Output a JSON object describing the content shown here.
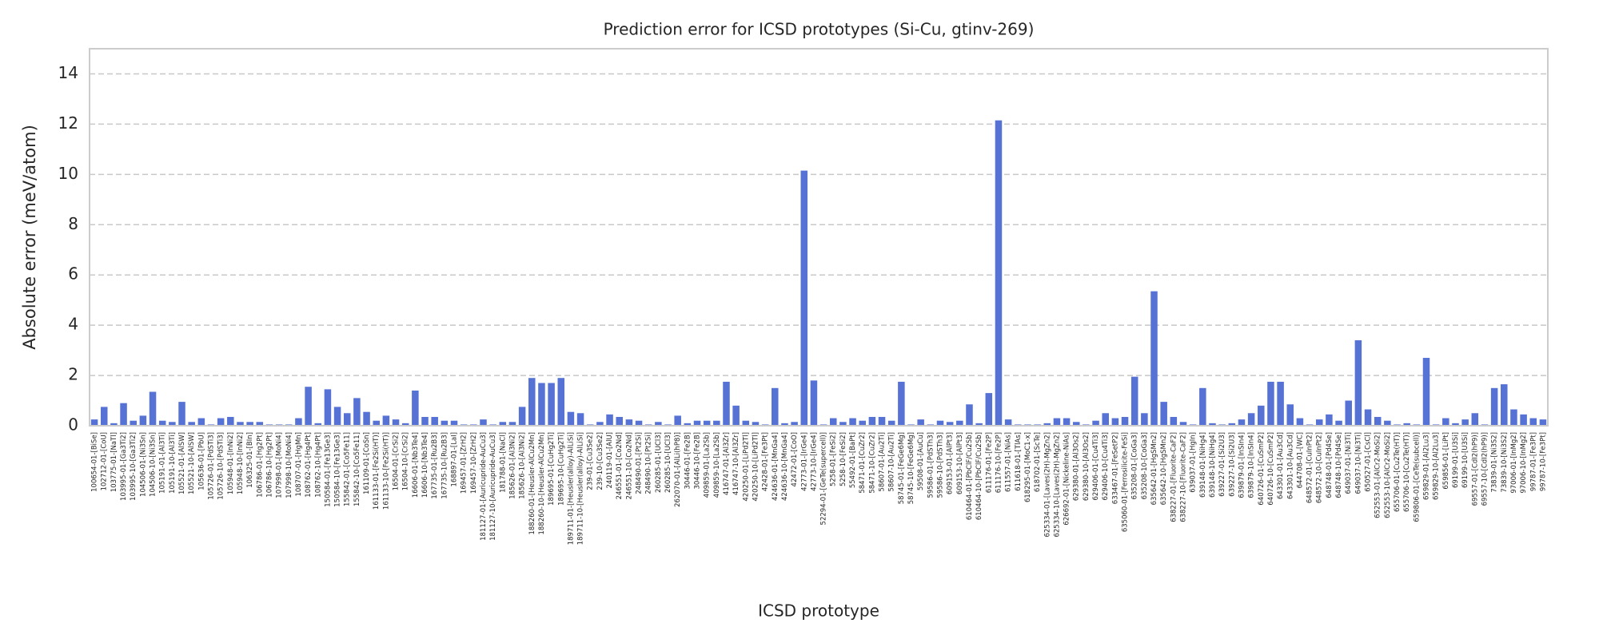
{
  "chart_data": {
    "type": "bar",
    "title": "Prediction error for ICSD prototypes (Si-Cu, gtinv-269)",
    "x_label": "ICSD prototype",
    "y_label": "Absolute error (meV/atom)",
    "color": "#5572d4",
    "grid": true,
    "ylim": [
      0,
      15
    ],
    "yticks": [
      0,
      2,
      4,
      6,
      8,
      10,
      12,
      14
    ],
    "categories": [
      "100654-01-[BiSe]",
      "102712-01-[CoU]",
      "103775-01-[NaTl]",
      "103995-01-[Ga3Ti2]",
      "103995-10-[Ga3Ti2]",
      "104506-01-[Ni3Sn]",
      "104506-10-[Ni3Sn]",
      "105191-01-[Al3Ti]",
      "105191-10-[Al3Ti]",
      "105521-01-[AlSW]",
      "105521-10-[AlSW]",
      "105636-01-[PbU]",
      "105726-01-[PdSTi3]",
      "105726-10-[PdSTi3]",
      "105948-01-[InNi2]",
      "105948-10-[InNi2]",
      "106325-01-[BIn]",
      "106786-01-[Hg2Pt]",
      "106786-10-[Hg2Pt]",
      "107998-01-[MoNi4]",
      "107998-10-[MoNi4]",
      "108707-01-[HgMn]",
      "108762-01-[Hg4Pt]",
      "108762-10-[Hg4Pt]",
      "150584-01-[Fe13Ge3]",
      "150584-10-[Fe13Ge3]",
      "155842-01-[Co5Fe11]",
      "155842-10-[Co5Fe11]",
      "161109-01-[CoSn]",
      "161133-01-[Fe2Si(HT)]",
      "161133-10-[Fe2Si(HT)]",
      "16504-01-[CrSi2]",
      "16504-10-[CrSi2]",
      "16606-01-[Nb3Te4]",
      "16606-10-[Nb3Te4]",
      "167735-01-[Ru2B3]",
      "167735-10-[Ru2B3]",
      "168897-01-[LaI]",
      "169457-01-[ZrH2]",
      "169457-10-[ZrH2]",
      "181127-01-[Auricupride-AuCu3]",
      "181127-10-[Auricupride-AuCu3]",
      "181788-01-[NaCl]",
      "185626-01-[Al3Ni2]",
      "185626-10-[Al3Ni2]",
      "188260-01-[Heusler-AlCu2Mn]",
      "188260-10-[Heusler-AlCu2Mn]",
      "189695-01-[CuHg2Ti]",
      "189695-10-[CuHg2Ti]",
      "189711-01-[Heusler(alloy)-AlLiSi]",
      "189711-10-[Heusler(alloy)-AlLiSi]",
      "239-01-[Cu3Se2]",
      "239-10-[Cu3Se2]",
      "240119-01-[AlU]",
      "246551-01-[Co2Nd]",
      "246551-10-[Co2Nd]",
      "248490-01-[Pt2Si]",
      "248490-10-[Pt2Si]",
      "260285-01-[UCl3]",
      "260285-10-[UCl3]",
      "262070-01-[AlLi(hP8)]",
      "30446-01-[Fe2B]",
      "30446-10-[Fe2B]",
      "409859-01-[La2Sb]",
      "409859-10-[La2Sb]",
      "416747-01-[Al3Zr]",
      "416747-10-[Al3Zr]",
      "420250-01-[LiPd2Tl]",
      "420250-10-[LiPd2Tl]",
      "42428-01-[Fe3Pt]",
      "424636-01-[MnGa4]",
      "424636-10-[MnGa4]",
      "42472-01-[CoO]",
      "42773-01-[IrGe4]",
      "42773-10-[IrGe4]",
      "52294-01-[GeTe(supercell)]",
      "5258-01-[FeSi2]",
      "5258-10-[FeSi2]",
      "55492-01-[BaPt]",
      "58471-01-[CuZr2]",
      "58471-10-[CuZr2]",
      "58607-01-[Au2Ti]",
      "58607-10-[Au2Ti]",
      "58745-01-[FeGe6Mg]",
      "58745-10-[FeGe6Mg]",
      "59508-01-[AuCu]",
      "59586-01-[PdSTh3]",
      "59586-10-[PdSTh3]",
      "609153-01-[AlPt3]",
      "609153-10-[AlPt3]",
      "610464-01-[PbClF/Cu2Sb]",
      "610464-10-[PbClF/Cu2Sb]",
      "611176-01-[Fe2P]",
      "611176-10-[Fe2P]",
      "611557-01-[NiAs]",
      "611618-01-[TlAs]",
      "618295-01-[MoC1-x]",
      "618702-01-[ScTe]",
      "625334-01-[Laves(2H)-MgZn2]",
      "625334-10-[Laves(2H)-MgZn2]",
      "626692-01-[Nickeline-NiAs]",
      "629380-01-[Al3Os2]",
      "629380-10-[Al3Os2]",
      "629406-01-[Cu4Ti3]",
      "629406-10-[Cu4Ti3]",
      "633467-01-[FeSetP2]",
      "635060-01-[Ferrosilicite-FeSi]",
      "635208-01-[CoGa3]",
      "635208-10-[CoGa3]",
      "635642-01-[HgSMn2]",
      "635642-10-[HgSMn2]",
      "638227-01-[Fluorite-CaF2]",
      "638227-10-[Fluorite-CaF2]",
      "639037-01-[HgIn]",
      "639148-01-[NiHg4]",
      "639148-10-[NiHg4]",
      "639227-01-[Si2U3]",
      "639227-10-[Si2U3]",
      "639879-01-[InSIn4]",
      "639879-10-[InSIn4]",
      "640726-01-[CuSmP2]",
      "640726-10-[CuSmP2]",
      "643301-01-[Au3Cd]",
      "643301-10-[Au3Cd]",
      "644708-01-[WC]",
      "648572-01-[CuInPt2]",
      "648572-10-[CuInPt2]",
      "648748-01-[Pd4Se]",
      "648748-10-[Pd4Se]",
      "649037-01-[Ni3Ti]",
      "649037-10-[Ni3Ti]",
      "650527-01-[CsCl]",
      "652553-01-[AlCr2-MoSi2]",
      "652553-10-[AlCr2-MoSi2]",
      "655706-01-[Cu2Te(HT)]",
      "655706-10-[Cu2Te(HT)]",
      "659806-01-[CeTe(subcell)]",
      "659829-01-[Al2Lu3]",
      "659829-10-[Al2Lu3]",
      "659856-01-[LiPt]",
      "69199-01-[U3Si]",
      "69199-10-[U3Si]",
      "69557-01-[CdI2(hP9)]",
      "69557-10-[CdI2(hP9)]",
      "73839-01-[Ni3S2]",
      "73839-10-[Ni3S2]",
      "97006-01-[InMg2]",
      "97006-10-[InMg2]",
      "99787-01-[Fe3Pt]",
      "99787-10-[Fe3Pt]"
    ],
    "values": [
      0.25,
      0.75,
      0.1,
      0.9,
      0.2,
      0.4,
      1.35,
      0.2,
      0.15,
      0.95,
      0.15,
      0.3,
      0.05,
      0.3,
      0.35,
      0.15,
      0.15,
      0.15,
      0.05,
      0.05,
      0.05,
      0.3,
      1.55,
      0.1,
      1.45,
      0.75,
      0.5,
      1.1,
      0.55,
      0.2,
      0.4,
      0.25,
      0.1,
      1.4,
      0.35,
      0.35,
      0.2,
      0.2,
      0.05,
      0.05,
      0.25,
      0.05,
      0.15,
      0.15,
      0.75,
      1.9,
      1.7,
      1.7,
      1.9,
      0.55,
      0.5,
      0.05,
      0.15,
      0.45,
      0.35,
      0.25,
      0.2,
      0.05,
      0.15,
      0.05,
      0.4,
      0.1,
      0.2,
      0.2,
      0.2,
      1.75,
      0.8,
      0.2,
      0.15,
      0.05,
      1.5,
      0.1,
      0.15,
      10.15,
      1.8,
      0.05,
      0.3,
      0.15,
      0.3,
      0.2,
      0.35,
      0.35,
      0.2,
      1.75,
      0.05,
      0.25,
      0.05,
      0.2,
      0.15,
      0.2,
      0.85,
      0.1,
      1.3,
      12.15,
      0.25,
      0.05,
      0.05,
      0.05,
      0.1,
      0.3,
      0.3,
      0.15,
      0.05,
      0.2,
      0.5,
      0.3,
      0.35,
      1.95,
      0.5,
      5.35,
      0.95,
      0.35,
      0.15,
      0.05,
      1.5,
      0.1,
      0.05,
      0.1,
      0.25,
      0.5,
      0.8,
      1.75,
      1.75,
      0.85,
      0.3,
      0.05,
      0.25,
      0.45,
      0.2,
      1.0,
      3.4,
      0.65,
      0.35,
      0.2,
      0.05,
      0.1,
      0.05,
      2.7,
      0.05,
      0.3,
      0.1,
      0.25,
      0.5,
      0.05,
      1.5,
      1.65,
      0.65,
      0.45,
      0.3,
      0.25
    ]
  }
}
